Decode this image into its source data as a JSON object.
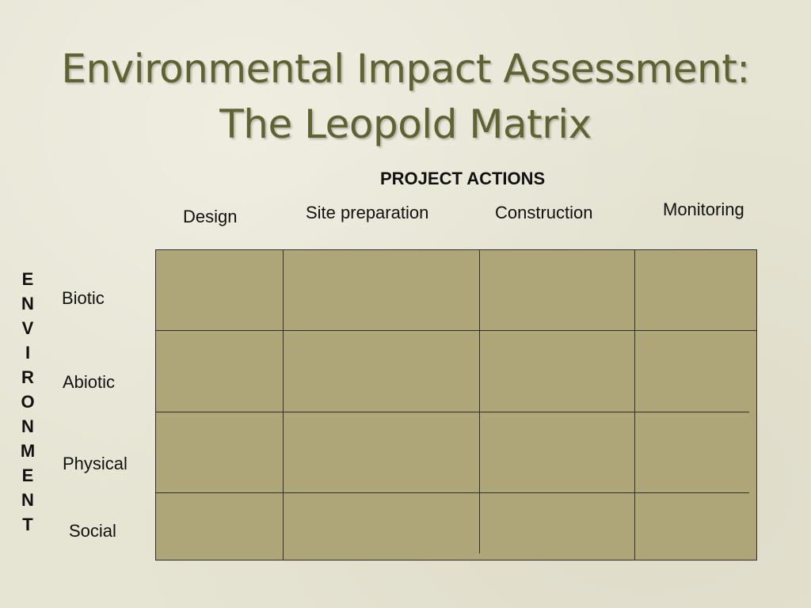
{
  "slide": {
    "title_line1": "Environmental Impact Assessment:",
    "title_line2": "The Leopold Matrix"
  },
  "matrix": {
    "section_heading": "PROJECT ACTIONS",
    "columns": [
      "Design",
      "Site preparation",
      "Construction",
      "Monitoring"
    ],
    "row_axis_letters": [
      "E",
      "N",
      "V",
      "I",
      "R",
      "O",
      "N",
      "M",
      "E",
      "N",
      "T"
    ],
    "rows": [
      "Biotic",
      "Abiotic",
      "Physical",
      "Social"
    ],
    "cell_color": "#aea679",
    "title_color": "#5f6233"
  }
}
